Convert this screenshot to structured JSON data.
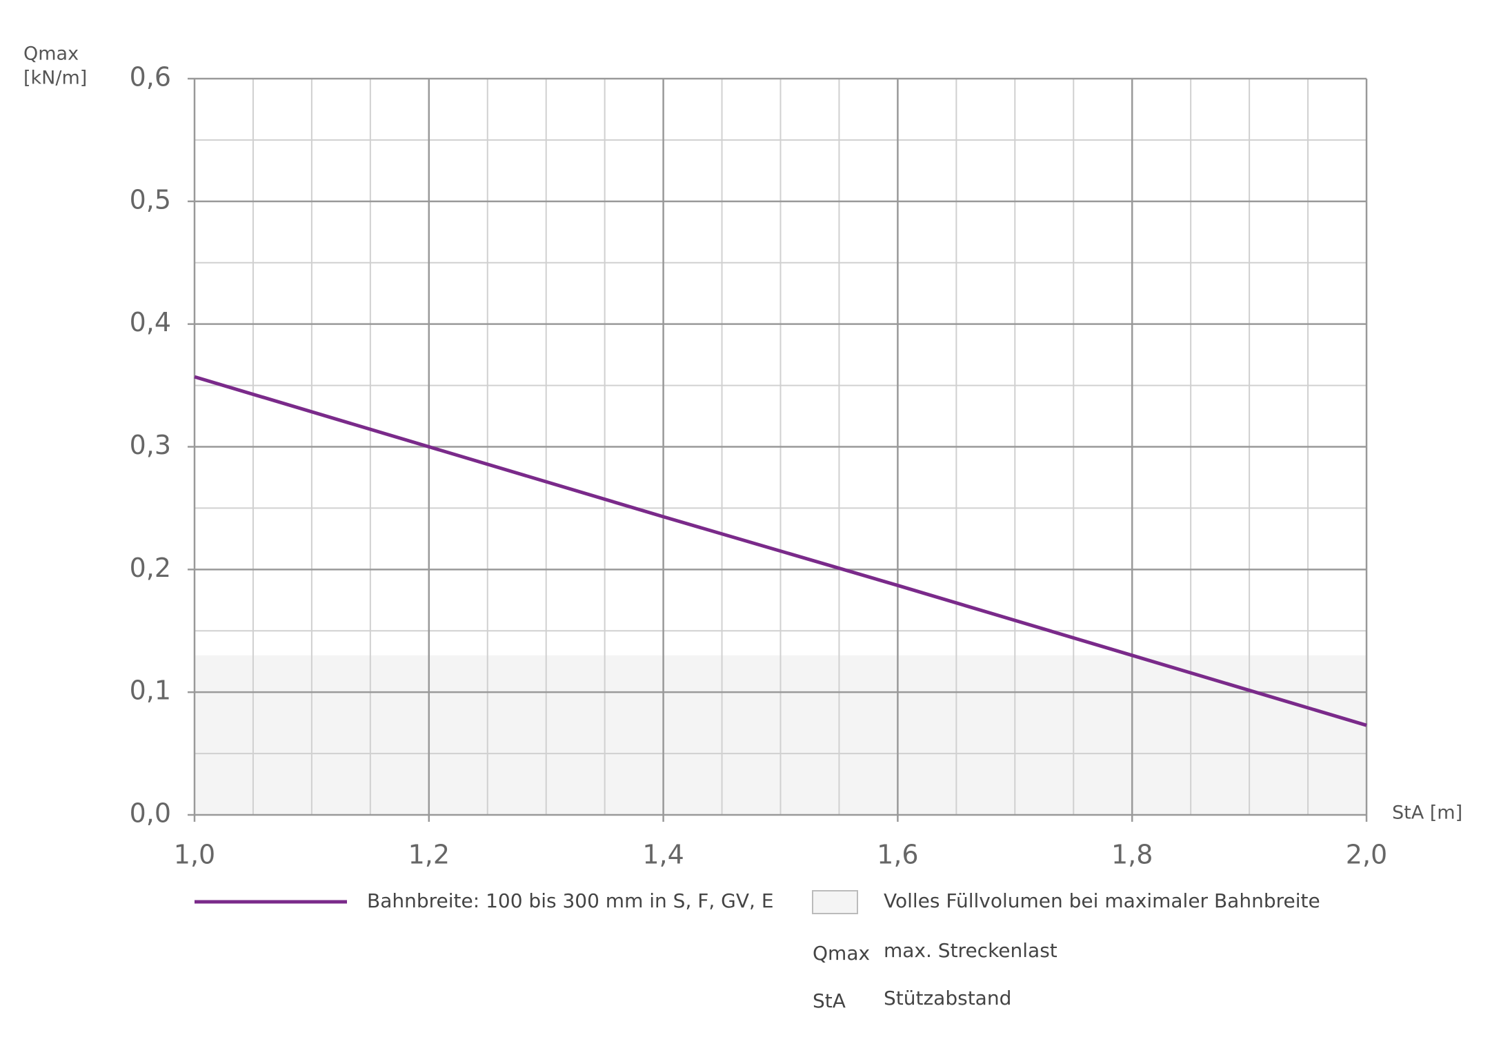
{
  "chart_data": {
    "type": "line",
    "ylabel": [
      "Qmax",
      "[kN/m]"
    ],
    "xlabel": "StA [m]",
    "x": [
      1.0,
      1.2,
      1.4,
      1.6,
      1.8,
      2.0
    ],
    "series": [
      {
        "name": "Bahnbreite: 100 bis 300 mm in S, F, GV, E",
        "color": "#7a2a8a",
        "values": [
          0.357,
          0.3,
          0.243,
          0.187,
          0.13,
          0.073
        ]
      }
    ],
    "shaded_region": {
      "label": "Volles Füllvolumen bei maximaler Bahnbreite",
      "ylim": [
        0,
        0.13
      ],
      "color": "#f4f4f4"
    },
    "xlim": [
      1.0,
      2.0
    ],
    "ylim": [
      0,
      0.6
    ],
    "xticks": [
      {
        "value": 1.0,
        "label": "1,0"
      },
      {
        "value": 1.2,
        "label": "1,2"
      },
      {
        "value": 1.4,
        "label": "1,4"
      },
      {
        "value": 1.6,
        "label": "1,6"
      },
      {
        "value": 1.8,
        "label": "1,8"
      },
      {
        "value": 2.0,
        "label": "2,0"
      }
    ],
    "yticks": [
      {
        "value": 0,
        "label": "0,0"
      },
      {
        "value": 0.1,
        "label": "0,1"
      },
      {
        "value": 0.2,
        "label": "0,2"
      },
      {
        "value": 0.3,
        "label": "0,3"
      },
      {
        "value": 0.4,
        "label": "0,4"
      },
      {
        "value": 0.5,
        "label": "0,5"
      },
      {
        "value": 0.6,
        "label": "0,6"
      }
    ],
    "x_minor_ticks": [
      1.1,
      1.3,
      1.5,
      1.7,
      1.9,
      1.05,
      1.15,
      1.25,
      1.35,
      1.45,
      1.55,
      1.65,
      1.75,
      1.85,
      1.95
    ],
    "y_minor_ticks": [
      0.05,
      0.15,
      0.25,
      0.35,
      0.45,
      0.55
    ],
    "grid": true,
    "glossary": [
      {
        "term": "Qmax",
        "text": "max. Streckenlast"
      },
      {
        "term": "StA",
        "text": "Stützabstand"
      }
    ]
  }
}
